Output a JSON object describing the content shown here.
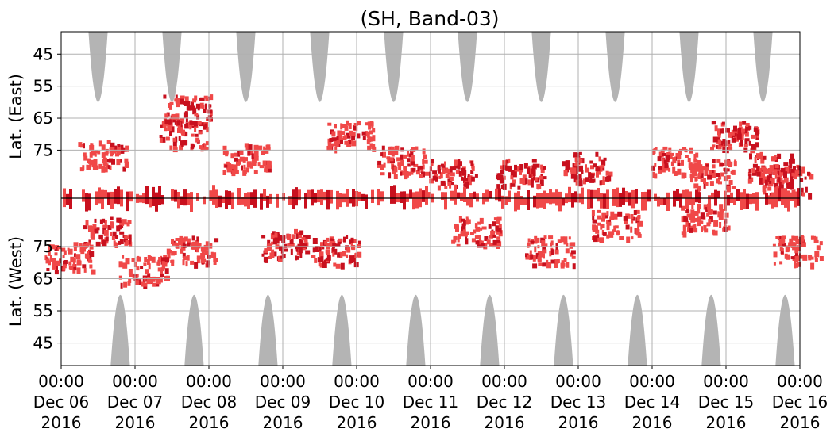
{
  "chart_data": {
    "type": "heatmap",
    "title": "(SH, Band-03)",
    "ylabel_top": "Lat. (East)",
    "ylabel_bottom": "Lat. (West)",
    "xlabel": "",
    "x_range": [
      "2016-12-06 00:00",
      "2016-12-16 00:00"
    ],
    "x_tick_labels": [
      [
        "00:00",
        "Dec 06",
        "2016"
      ],
      [
        "00:00",
        "Dec 07",
        "2016"
      ],
      [
        "00:00",
        "Dec 08",
        "2016"
      ],
      [
        "00:00",
        "Dec 09",
        "2016"
      ],
      [
        "00:00",
        "Dec 10",
        "2016"
      ],
      [
        "00:00",
        "Dec 11",
        "2016"
      ],
      [
        "00:00",
        "Dec 12",
        "2016"
      ],
      [
        "00:00",
        "Dec 13",
        "2016"
      ],
      [
        "00:00",
        "Dec 14",
        "2016"
      ],
      [
        "00:00",
        "Dec 15",
        "2016"
      ],
      [
        "00:00",
        "Dec 16",
        "2016"
      ]
    ],
    "y_tick_labels_east": [
      "45",
      "55",
      "65",
      "75"
    ],
    "y_tick_labels_west": [
      "75",
      "65",
      "55",
      "45"
    ],
    "y_axis_note": "Latitude folded about the pole: East side increases upward to the pole, West side decreases downward from the pole",
    "y_range_east": [
      38,
      90
    ],
    "y_range_west": [
      90,
      38
    ],
    "grid": true,
    "colors": {
      "daylight": "#b4b4b4",
      "occurrence_light": "#f04848",
      "occurrence_dark": "#c8101e",
      "pole_line": "#000000",
      "grid": "#b0b0b0"
    },
    "daylight_regions_east": [
      {
        "center_day": 0.5,
        "lowest_lat": 60
      },
      {
        "center_day": 1.5,
        "lowest_lat": 60
      },
      {
        "center_day": 2.5,
        "lowest_lat": 60
      },
      {
        "center_day": 3.5,
        "lowest_lat": 60
      },
      {
        "center_day": 4.5,
        "lowest_lat": 60
      },
      {
        "center_day": 5.5,
        "lowest_lat": 60
      },
      {
        "center_day": 6.5,
        "lowest_lat": 60
      },
      {
        "center_day": 7.5,
        "lowest_lat": 60
      },
      {
        "center_day": 8.5,
        "lowest_lat": 60
      },
      {
        "center_day": 9.5,
        "lowest_lat": 60
      }
    ],
    "daylight_regions_west": [
      {
        "center_day": 0.8,
        "lowest_lat": 60
      },
      {
        "center_day": 1.8,
        "lowest_lat": 60
      },
      {
        "center_day": 2.8,
        "lowest_lat": 60
      },
      {
        "center_day": 3.8,
        "lowest_lat": 60
      },
      {
        "center_day": 4.8,
        "lowest_lat": 60
      },
      {
        "center_day": 5.8,
        "lowest_lat": 60
      },
      {
        "center_day": 6.8,
        "lowest_lat": 60
      },
      {
        "center_day": 7.8,
        "lowest_lat": 60
      },
      {
        "center_day": 8.8,
        "lowest_lat": 60
      },
      {
        "center_day": 9.8,
        "lowest_lat": 60
      }
    ],
    "occurrence_clusters": [
      {
        "day": 0.55,
        "lat_east": 76,
        "intensity": "light"
      },
      {
        "day": 0.6,
        "lat_west": 80,
        "intensity": "dark"
      },
      {
        "day": 0.1,
        "lat_west": 72,
        "intensity": "light"
      },
      {
        "day": 1.65,
        "lat_east": 70,
        "intensity": "dark"
      },
      {
        "day": 1.7,
        "lat_east": 62,
        "intensity": "dark"
      },
      {
        "day": 1.75,
        "lat_west": 74,
        "intensity": "light"
      },
      {
        "day": 1.1,
        "lat_west": 68,
        "intensity": "light"
      },
      {
        "day": 2.5,
        "lat_east": 77,
        "intensity": "light"
      },
      {
        "day": 3.0,
        "lat_west": 76,
        "intensity": "dark"
      },
      {
        "day": 3.7,
        "lat_west": 74,
        "intensity": "dark"
      },
      {
        "day": 3.9,
        "lat_east": 70,
        "intensity": "light"
      },
      {
        "day": 4.6,
        "lat_east": 78,
        "intensity": "light"
      },
      {
        "day": 5.3,
        "lat_east": 82,
        "intensity": "dark"
      },
      {
        "day": 5.6,
        "lat_west": 80,
        "intensity": "light"
      },
      {
        "day": 6.2,
        "lat_east": 82,
        "intensity": "dark"
      },
      {
        "day": 6.6,
        "lat_west": 74,
        "intensity": "light"
      },
      {
        "day": 7.1,
        "lat_east": 80,
        "intensity": "dark"
      },
      {
        "day": 7.5,
        "lat_west": 82,
        "intensity": "light"
      },
      {
        "day": 8.3,
        "lat_east": 78,
        "intensity": "light"
      },
      {
        "day": 8.8,
        "lat_east": 82,
        "intensity": "light"
      },
      {
        "day": 8.7,
        "lat_west": 84,
        "intensity": "light"
      },
      {
        "day": 9.1,
        "lat_east": 70,
        "intensity": "dark"
      },
      {
        "day": 9.6,
        "lat_east": 80,
        "intensity": "dark"
      },
      {
        "day": 9.8,
        "lat_east": 84,
        "intensity": "dark"
      },
      {
        "day": 9.95,
        "lat_west": 74,
        "intensity": "light"
      }
    ]
  }
}
